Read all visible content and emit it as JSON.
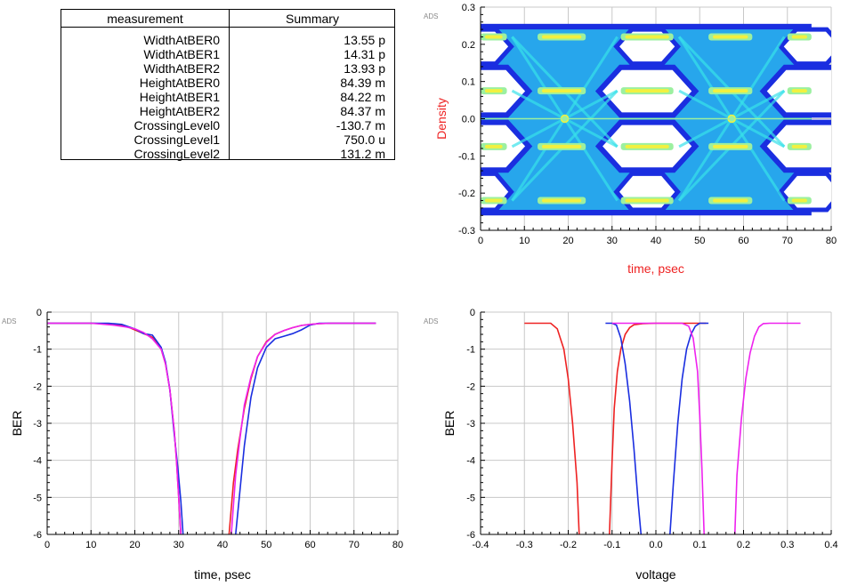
{
  "table": {
    "header": [
      "measurement",
      "Summary"
    ],
    "rows": [
      {
        "name": "WidthAtBER0",
        "value": "13.55 p"
      },
      {
        "name": "WidthAtBER1",
        "value": "14.31 p"
      },
      {
        "name": "WidthAtBER2",
        "value": "13.93 p"
      },
      {
        "name": "HeightAtBER0",
        "value": "84.39 m"
      },
      {
        "name": "HeightAtBER1",
        "value": "84.22 m"
      },
      {
        "name": "HeightAtBER2",
        "value": "84.37 m"
      },
      {
        "name": "CrossingLevel0",
        "value": "-130.7 m"
      },
      {
        "name": "CrossingLevel1",
        "value": "750.0 u"
      },
      {
        "name": "CrossingLevel2",
        "value": "131.2 m"
      }
    ]
  },
  "chart_data": [
    {
      "type": "heatmap",
      "watermark": "ADS",
      "xlabel": "time, psec",
      "ylabel": "Density",
      "label_color": "#ee2222",
      "xlim": [
        0,
        80
      ],
      "ylim": [
        -0.3,
        0.3
      ],
      "xticks": [
        "0",
        "10",
        "20",
        "30",
        "40",
        "50",
        "60",
        "70",
        "80"
      ],
      "yticks": [
        "0.3",
        "0.2",
        "0.1",
        "0.0",
        "-0.1",
        "-0.2",
        "-0.3"
      ],
      "x_span": [
        0,
        75.5
      ],
      "levels": [
        -0.22,
        -0.075,
        0.075,
        0.22
      ],
      "crossings": [
        19.2,
        57.3
      ],
      "colors": [
        "#1a2ee0",
        "#27a6ec",
        "#38e2ea",
        "#9cf0a0",
        "#f2f040"
      ]
    },
    {
      "type": "line",
      "watermark": "ADS",
      "xlabel": "time, psec",
      "ylabel": "BER",
      "xlim": [
        0,
        80
      ],
      "ylim": [
        -6,
        0
      ],
      "xticks": [
        "0",
        "10",
        "20",
        "30",
        "40",
        "50",
        "60",
        "70",
        "80"
      ],
      "yticks": [
        "0",
        "-1",
        "-2",
        "-3",
        "-4",
        "-5",
        "-6"
      ],
      "series": [
        {
          "color": "#ee2222",
          "x": [
            0,
            10,
            15,
            18,
            20,
            22,
            24,
            26,
            27,
            28,
            29,
            29.5,
            30,
            30.5
          ],
          "y": [
            -0.3,
            -0.3,
            -0.32,
            -0.38,
            -0.48,
            -0.58,
            -0.68,
            -1.0,
            -1.4,
            -2.1,
            -3.2,
            -4.0,
            -5.0,
            -6.0
          ]
        },
        {
          "color": "#ee2222",
          "x": [
            41.5,
            42.5,
            43.5,
            45,
            46.5,
            48,
            50,
            52,
            54,
            56,
            58,
            60,
            62,
            65,
            70,
            75
          ],
          "y": [
            -6.0,
            -4.6,
            -3.7,
            -2.6,
            -1.8,
            -1.2,
            -0.8,
            -0.6,
            -0.5,
            -0.42,
            -0.36,
            -0.33,
            -0.31,
            -0.3,
            -0.3,
            -0.3
          ]
        },
        {
          "color": "#1a2ee0",
          "x": [
            0,
            10,
            14,
            17,
            20,
            22,
            24,
            26,
            27,
            28,
            29,
            29.8,
            30.5,
            31
          ],
          "y": [
            -0.3,
            -0.3,
            -0.3,
            -0.33,
            -0.45,
            -0.58,
            -0.62,
            -0.95,
            -1.35,
            -2.1,
            -3.3,
            -4.2,
            -5.1,
            -6.0
          ]
        },
        {
          "color": "#1a2ee0",
          "x": [
            43,
            44,
            45,
            46.5,
            48,
            50,
            52,
            54,
            56,
            58,
            60,
            62,
            65,
            70,
            75
          ],
          "y": [
            -6.0,
            -4.8,
            -3.6,
            -2.3,
            -1.5,
            -0.95,
            -0.72,
            -0.65,
            -0.58,
            -0.48,
            -0.35,
            -0.3,
            -0.3,
            -0.3,
            -0.3
          ]
        },
        {
          "color": "#ee22ee",
          "x": [
            0,
            10,
            15,
            18,
            20,
            22,
            24,
            26,
            27,
            28,
            29,
            29.5,
            30,
            30.5
          ],
          "y": [
            -0.3,
            -0.3,
            -0.35,
            -0.4,
            -0.45,
            -0.55,
            -0.72,
            -1.0,
            -1.4,
            -2.1,
            -3.2,
            -4.0,
            -5.0,
            -6.0
          ]
        },
        {
          "color": "#ee22ee",
          "x": [
            42,
            43,
            44,
            45,
            46.5,
            48,
            50,
            52,
            54,
            56,
            58,
            60,
            62,
            65,
            70,
            75
          ],
          "y": [
            -6.0,
            -4.4,
            -3.4,
            -2.5,
            -1.75,
            -1.2,
            -0.82,
            -0.6,
            -0.5,
            -0.42,
            -0.36,
            -0.33,
            -0.31,
            -0.3,
            -0.3,
            -0.3
          ]
        }
      ]
    },
    {
      "type": "line",
      "watermark": "ADS",
      "xlabel": "voltage",
      "ylabel": "BER",
      "xlim": [
        -0.4,
        0.4
      ],
      "ylim": [
        -6,
        0
      ],
      "xticks": [
        "-0.4",
        "-0.3",
        "-0.2",
        "-0.1",
        "0.0",
        "0.1",
        "0.2",
        "0.3",
        "0.4"
      ],
      "yticks": [
        "0",
        "-1",
        "-2",
        "-3",
        "-4",
        "-5",
        "-6"
      ],
      "series": [
        {
          "color": "#ee2222",
          "x": [
            -0.3,
            -0.24,
            -0.225,
            -0.21,
            -0.2,
            -0.19,
            -0.18,
            -0.175
          ],
          "y": [
            -0.3,
            -0.3,
            -0.45,
            -1.0,
            -1.8,
            -3.0,
            -4.6,
            -6.0
          ]
        },
        {
          "color": "#ee2222",
          "x": [
            -0.106,
            -0.1,
            -0.095,
            -0.088,
            -0.08,
            -0.07,
            -0.06,
            -0.05,
            -0.03,
            0.0,
            0.08,
            0.1,
            0.115
          ],
          "y": [
            -6.0,
            -4.0,
            -2.6,
            -1.6,
            -1.0,
            -0.6,
            -0.42,
            -0.34,
            -0.31,
            -0.3,
            -0.3,
            -0.3,
            -0.3
          ]
        },
        {
          "color": "#1a2ee0",
          "x": [
            -0.115,
            -0.1,
            -0.09,
            -0.08,
            -0.07,
            -0.06,
            -0.05,
            -0.04,
            -0.034
          ],
          "y": [
            -0.3,
            -0.3,
            -0.35,
            -0.7,
            -1.4,
            -2.4,
            -3.7,
            -5.2,
            -6.0
          ]
        },
        {
          "color": "#1a2ee0",
          "x": [
            0.032,
            0.04,
            0.05,
            0.06,
            0.07,
            0.08,
            0.09,
            0.1,
            0.12
          ],
          "y": [
            -6.0,
            -4.6,
            -3.0,
            -1.8,
            -1.0,
            -0.6,
            -0.38,
            -0.3,
            -0.3
          ]
        },
        {
          "color": "#ee22ee",
          "x": [
            -0.1,
            -0.05,
            0.0,
            0.06,
            0.075,
            0.085,
            0.095,
            0.1,
            0.105,
            0.11
          ],
          "y": [
            -0.3,
            -0.3,
            -0.3,
            -0.3,
            -0.38,
            -0.7,
            -1.6,
            -2.8,
            -4.2,
            -6.0
          ]
        },
        {
          "color": "#ee22ee",
          "x": [
            0.18,
            0.185,
            0.195,
            0.205,
            0.215,
            0.225,
            0.235,
            0.245,
            0.26,
            0.33
          ],
          "y": [
            -6.0,
            -4.4,
            -2.9,
            -1.8,
            -1.1,
            -0.65,
            -0.4,
            -0.31,
            -0.3,
            -0.3
          ]
        }
      ]
    }
  ]
}
